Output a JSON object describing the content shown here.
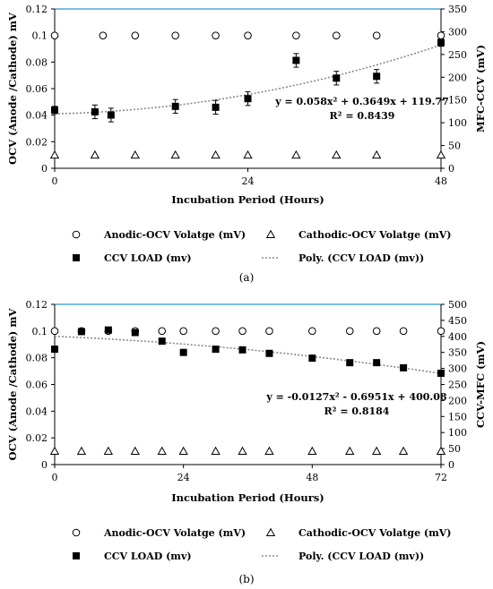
{
  "chart_data": [
    {
      "type": "scatter",
      "panel": "(a)",
      "xlabel": "Incubation Period (Hours)",
      "ylabel": "OCV (Anode /Cathode) mV",
      "y2label": "MFC-CCV (mV)",
      "xlim": [
        0,
        48
      ],
      "ylim": [
        0,
        0.12
      ],
      "y2lim": [
        0,
        350
      ],
      "x_ticks": [
        "0",
        "24",
        "48"
      ],
      "y_ticks": [
        "0",
        "0.02",
        "0.04",
        "0.06",
        "0.08",
        "0.1",
        "0.12"
      ],
      "y2_ticks": [
        "0",
        "50",
        "100",
        "150",
        "200",
        "250",
        "300",
        "350"
      ],
      "grid": false,
      "legend_placement": "bottom",
      "series": [
        {
          "name": "Anodic-OCV Volatge (mV)",
          "marker": "open-circle",
          "axis": "left",
          "x": [
            0,
            6,
            10,
            15,
            20,
            24,
            30,
            35,
            40,
            48
          ],
          "y": [
            0.1,
            0.1,
            0.1,
            0.1,
            0.1,
            0.1,
            0.1,
            0.1,
            0.1,
            0.1
          ]
        },
        {
          "name": "Cathodic-OCV Volatge (mV)",
          "marker": "open-triangle",
          "axis": "left",
          "x": [
            0,
            5,
            10,
            15,
            20,
            24,
            30,
            35,
            40,
            48
          ],
          "y": [
            0.01,
            0.01,
            0.01,
            0.01,
            0.01,
            0.01,
            0.01,
            0.01,
            0.01,
            0.01
          ]
        },
        {
          "name": "CCV LOAD (mv)",
          "marker": "filled-square",
          "axis": "right",
          "x": [
            0,
            5,
            7,
            15,
            20,
            24,
            30,
            35,
            40,
            48
          ],
          "y": [
            128,
            124,
            117,
            136,
            134,
            153,
            237,
            198,
            202,
            276
          ],
          "err": [
            8,
            15,
            15,
            15,
            15,
            15,
            15,
            15,
            15,
            8
          ]
        }
      ],
      "trendline": {
        "name": "Poly. (CCV LOAD (mv))",
        "coeffs": [
          0.058,
          0.3649,
          119.77
        ],
        "equation": "y = 0.058x² + 0.3649x + 119.77",
        "r2": "R² = 0.8439"
      }
    },
    {
      "type": "scatter",
      "panel": "(b)",
      "xlabel": "Incubation Period (Hours)",
      "ylabel": "OCV (Anode /Cathode) mV",
      "y2label": "CCV-MFC (mV)",
      "xlim": [
        0,
        72
      ],
      "ylim": [
        0,
        0.12
      ],
      "y2lim": [
        0,
        500
      ],
      "x_ticks": [
        "0",
        "24",
        "48",
        "72"
      ],
      "y_ticks": [
        "0",
        "0.02",
        "0.04",
        "0.06",
        "0.08",
        "0.1",
        "0.12"
      ],
      "y2_ticks": [
        "0",
        "50",
        "100",
        "150",
        "200",
        "250",
        "300",
        "350",
        "400",
        "450",
        "500"
      ],
      "grid": false,
      "legend_placement": "bottom",
      "series": [
        {
          "name": "Anodic-OCV Volatge (mV)",
          "marker": "open-circle",
          "axis": "left",
          "x": [
            0,
            5,
            10,
            15,
            20,
            24,
            30,
            35,
            40,
            48,
            55,
            60,
            65,
            72
          ],
          "y": [
            0.1,
            0.1,
            0.1,
            0.1,
            0.1,
            0.1,
            0.1,
            0.1,
            0.1,
            0.1,
            0.1,
            0.1,
            0.1,
            0.1
          ]
        },
        {
          "name": "Cathodic-OCV Volatge (mV)",
          "marker": "open-triangle",
          "axis": "left",
          "x": [
            0,
            5,
            10,
            15,
            20,
            24,
            30,
            35,
            40,
            48,
            55,
            60,
            65,
            72
          ],
          "y": [
            0.01,
            0.01,
            0.01,
            0.01,
            0.01,
            0.01,
            0.01,
            0.01,
            0.01,
            0.01,
            0.01,
            0.01,
            0.01,
            0.01
          ]
        },
        {
          "name": "CCV LOAD (mv)",
          "marker": "filled-square",
          "axis": "right",
          "x": [
            0,
            5,
            10,
            15,
            20,
            24,
            30,
            35,
            40,
            48,
            55,
            60,
            65,
            72
          ],
          "y": [
            360,
            415,
            420,
            412,
            385,
            350,
            360,
            358,
            347,
            332,
            318,
            318,
            302,
            285
          ],
          "err": [
            5,
            5,
            5,
            5,
            5,
            5,
            5,
            5,
            5,
            5,
            5,
            5,
            5,
            5
          ]
        }
      ],
      "trendline": {
        "name": "Poly. (CCV LOAD (mv))",
        "coeffs": [
          -0.0127,
          -0.6951,
          400.08
        ],
        "equation": "y = -0.0127x² - 0.6951x + 400.08",
        "r2": "R² = 0.8184"
      }
    }
  ]
}
